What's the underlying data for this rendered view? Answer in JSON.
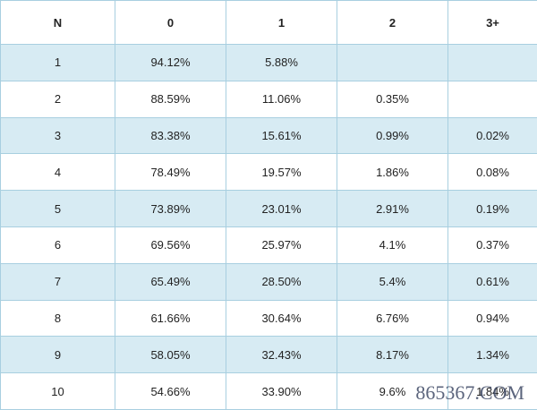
{
  "table": {
    "header": [
      "N",
      "0",
      "1",
      "2",
      "3+"
    ],
    "rows": [
      [
        "1",
        "94.12%",
        "5.88%",
        null,
        null
      ],
      [
        "2",
        "88.59%",
        "11.06%",
        "0.35%",
        null
      ],
      [
        "3",
        "83.38%",
        "15.61%",
        "0.99%",
        "0.02%"
      ],
      [
        "4",
        "78.49%",
        "19.57%",
        "1.86%",
        "0.08%"
      ],
      [
        "5",
        "73.89%",
        "23.01%",
        "2.91%",
        "0.19%"
      ],
      [
        "6",
        "69.56%",
        "25.97%",
        "4.1%",
        "0.37%"
      ],
      [
        "7",
        "65.49%",
        "28.50%",
        "5.4%",
        "0.61%"
      ],
      [
        "8",
        "61.66%",
        "30.64%",
        "6.76%",
        "0.94%"
      ],
      [
        "9",
        "58.05%",
        "32.43%",
        "8.17%",
        "1.34%"
      ],
      [
        "10",
        "54.66%",
        "33.90%",
        "9.6%",
        "1.84%"
      ]
    ]
  },
  "watermark": "865367.COM"
}
